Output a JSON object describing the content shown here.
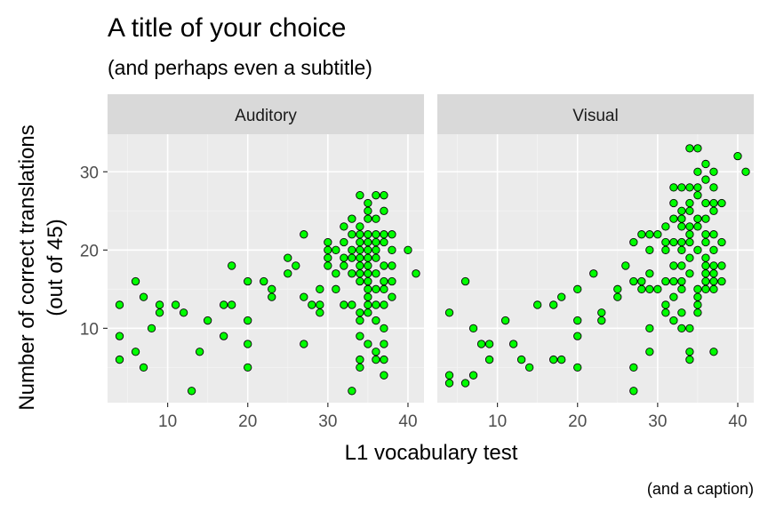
{
  "chart_data": {
    "type": "scatter",
    "title": "A title of your choice",
    "subtitle": "(and perhaps even a subtitle)",
    "caption": "(and a caption)",
    "xlabel": "L1 vocabulary test",
    "ylabel_line1": "Number of correct translations",
    "ylabel_line2": "(out of 45)",
    "xlim": [
      2.5,
      42
    ],
    "ylim": [
      0.5,
      34.8
    ],
    "x_ticks": [
      10,
      20,
      30,
      40
    ],
    "y_ticks": [
      10,
      20,
      30
    ],
    "grid": true,
    "colors": {
      "panel_background": "#ebebeb",
      "grid_major": "#ffffff",
      "grid_minor": "#f4f4f4",
      "strip_background": "#d9d9d9",
      "point_fill": "#00ff00",
      "point_stroke": "#000000",
      "tick_mark": "#333333"
    },
    "facets": [
      {
        "name": "Auditory",
        "points": [
          [
            4,
            13
          ],
          [
            4,
            9
          ],
          [
            4,
            6
          ],
          [
            6,
            16
          ],
          [
            6,
            7
          ],
          [
            7,
            14
          ],
          [
            7,
            5
          ],
          [
            8,
            10
          ],
          [
            9,
            13
          ],
          [
            9,
            12
          ],
          [
            11,
            13
          ],
          [
            12,
            12
          ],
          [
            13,
            2
          ],
          [
            14,
            7
          ],
          [
            15,
            11
          ],
          [
            17,
            13
          ],
          [
            17,
            9
          ],
          [
            18,
            18
          ],
          [
            18,
            13
          ],
          [
            20,
            16
          ],
          [
            20,
            11
          ],
          [
            20,
            8
          ],
          [
            20,
            5
          ],
          [
            22,
            16
          ],
          [
            23,
            15
          ],
          [
            23,
            14
          ],
          [
            25,
            19
          ],
          [
            25,
            17
          ],
          [
            26,
            18
          ],
          [
            27,
            22
          ],
          [
            27,
            14
          ],
          [
            27,
            8
          ],
          [
            28,
            13
          ],
          [
            29,
            15
          ],
          [
            29,
            13
          ],
          [
            29,
            12
          ],
          [
            30,
            21
          ],
          [
            30,
            20
          ],
          [
            30,
            19
          ],
          [
            30,
            18
          ],
          [
            31,
            20
          ],
          [
            31,
            17
          ],
          [
            31,
            15
          ],
          [
            32,
            23
          ],
          [
            32,
            21
          ],
          [
            32,
            19
          ],
          [
            32,
            18
          ],
          [
            32,
            13
          ],
          [
            33,
            24
          ],
          [
            33,
            22
          ],
          [
            33,
            20
          ],
          [
            33,
            19
          ],
          [
            33,
            17
          ],
          [
            33,
            13
          ],
          [
            33,
            2
          ],
          [
            34,
            27
          ],
          [
            34,
            23
          ],
          [
            34,
            22
          ],
          [
            34,
            21
          ],
          [
            34,
            20
          ],
          [
            34,
            19
          ],
          [
            34,
            18
          ],
          [
            34,
            17
          ],
          [
            34,
            16
          ],
          [
            34,
            12
          ],
          [
            34,
            11
          ],
          [
            34,
            9
          ],
          [
            34,
            6
          ],
          [
            34,
            5
          ],
          [
            35,
            26
          ],
          [
            35,
            25
          ],
          [
            35,
            24
          ],
          [
            35,
            22
          ],
          [
            35,
            21
          ],
          [
            35,
            20
          ],
          [
            35,
            19
          ],
          [
            35,
            18
          ],
          [
            35,
            17
          ],
          [
            35,
            16
          ],
          [
            35,
            15
          ],
          [
            35,
            14
          ],
          [
            35,
            13
          ],
          [
            35,
            12
          ],
          [
            35,
            8
          ],
          [
            36,
            27
          ],
          [
            36,
            24
          ],
          [
            36,
            22
          ],
          [
            36,
            21
          ],
          [
            36,
            20
          ],
          [
            36,
            19
          ],
          [
            36,
            17
          ],
          [
            36,
            15
          ],
          [
            36,
            13
          ],
          [
            36,
            11
          ],
          [
            36,
            7
          ],
          [
            36,
            6
          ],
          [
            37,
            27
          ],
          [
            37,
            25
          ],
          [
            37,
            22
          ],
          [
            37,
            21
          ],
          [
            37,
            18
          ],
          [
            37,
            16
          ],
          [
            37,
            15
          ],
          [
            37,
            13
          ],
          [
            37,
            10
          ],
          [
            37,
            8
          ],
          [
            37,
            6
          ],
          [
            37,
            4
          ],
          [
            38,
            22
          ],
          [
            38,
            20
          ],
          [
            38,
            18
          ],
          [
            38,
            16
          ],
          [
            38,
            14
          ],
          [
            40,
            20
          ],
          [
            41,
            17
          ]
        ]
      },
      {
        "name": "Visual",
        "points": [
          [
            4,
            12
          ],
          [
            4,
            4
          ],
          [
            4,
            3
          ],
          [
            6,
            16
          ],
          [
            6,
            3
          ],
          [
            7,
            10
          ],
          [
            7,
            4
          ],
          [
            8,
            8
          ],
          [
            9,
            8
          ],
          [
            9,
            6
          ],
          [
            11,
            11
          ],
          [
            12,
            8
          ],
          [
            13,
            6
          ],
          [
            14,
            5
          ],
          [
            15,
            13
          ],
          [
            17,
            13
          ],
          [
            17,
            6
          ],
          [
            18,
            14
          ],
          [
            18,
            6
          ],
          [
            20,
            15
          ],
          [
            20,
            11
          ],
          [
            20,
            9
          ],
          [
            20,
            5
          ],
          [
            22,
            17
          ],
          [
            23,
            12
          ],
          [
            23,
            11
          ],
          [
            25,
            15
          ],
          [
            25,
            14
          ],
          [
            26,
            18
          ],
          [
            27,
            21
          ],
          [
            27,
            16
          ],
          [
            27,
            5
          ],
          [
            27,
            2
          ],
          [
            28,
            22
          ],
          [
            28,
            16
          ],
          [
            28,
            15
          ],
          [
            29,
            22
          ],
          [
            29,
            20
          ],
          [
            29,
            17
          ],
          [
            29,
            15
          ],
          [
            29,
            10
          ],
          [
            29,
            7
          ],
          [
            30,
            22
          ],
          [
            30,
            15
          ],
          [
            31,
            23
          ],
          [
            31,
            21
          ],
          [
            31,
            20
          ],
          [
            31,
            16
          ],
          [
            31,
            13
          ],
          [
            31,
            12
          ],
          [
            32,
            28
          ],
          [
            32,
            26
          ],
          [
            32,
            24
          ],
          [
            32,
            21
          ],
          [
            32,
            18
          ],
          [
            32,
            16
          ],
          [
            32,
            14
          ],
          [
            32,
            11
          ],
          [
            33,
            28
          ],
          [
            33,
            25
          ],
          [
            33,
            24
          ],
          [
            33,
            23
          ],
          [
            33,
            21
          ],
          [
            33,
            20
          ],
          [
            33,
            18
          ],
          [
            33,
            16
          ],
          [
            33,
            15
          ],
          [
            33,
            12
          ],
          [
            33,
            10
          ],
          [
            34,
            33
          ],
          [
            34,
            28
          ],
          [
            34,
            26
          ],
          [
            34,
            25
          ],
          [
            34,
            23
          ],
          [
            34,
            22
          ],
          [
            34,
            21
          ],
          [
            34,
            19
          ],
          [
            34,
            17
          ],
          [
            34,
            10
          ],
          [
            34,
            7
          ],
          [
            34,
            6
          ],
          [
            35,
            33
          ],
          [
            35,
            30
          ],
          [
            35,
            28
          ],
          [
            35,
            27
          ],
          [
            35,
            24
          ],
          [
            35,
            23
          ],
          [
            35,
            20
          ],
          [
            35,
            15
          ],
          [
            35,
            14
          ],
          [
            35,
            13
          ],
          [
            35,
            12
          ],
          [
            36,
            31
          ],
          [
            36,
            29
          ],
          [
            36,
            26
          ],
          [
            36,
            24
          ],
          [
            36,
            22
          ],
          [
            36,
            21
          ],
          [
            36,
            19
          ],
          [
            36,
            18
          ],
          [
            36,
            17
          ],
          [
            36,
            16
          ],
          [
            36,
            15
          ],
          [
            37,
            30
          ],
          [
            37,
            28
          ],
          [
            37,
            26
          ],
          [
            37,
            25
          ],
          [
            37,
            22
          ],
          [
            37,
            20
          ],
          [
            37,
            18
          ],
          [
            37,
            17
          ],
          [
            37,
            16
          ],
          [
            37,
            15
          ],
          [
            37,
            7
          ],
          [
            38,
            26
          ],
          [
            38,
            21
          ],
          [
            38,
            18
          ],
          [
            38,
            16
          ],
          [
            40,
            32
          ],
          [
            41,
            30
          ]
        ]
      }
    ]
  }
}
